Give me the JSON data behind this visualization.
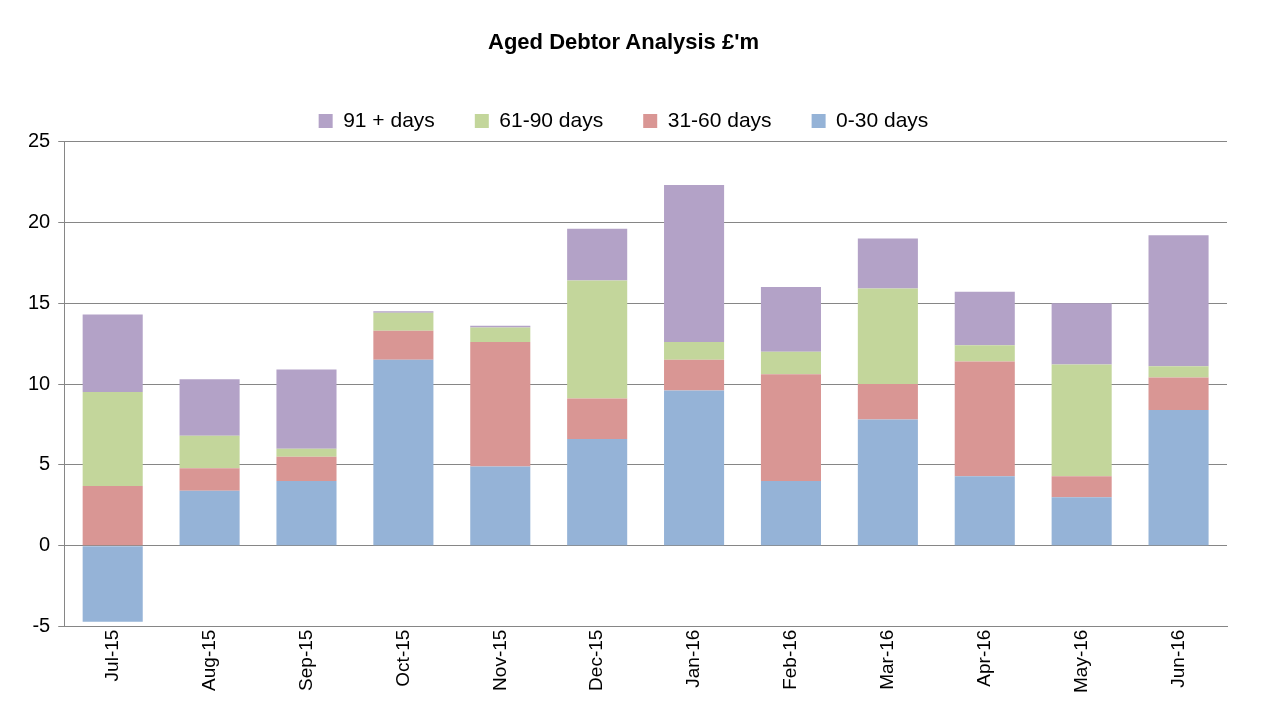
{
  "chart_data": {
    "type": "bar",
    "title": "Aged Debtor Analysis £'m",
    "stacked": true,
    "legend": "top",
    "grid": "y",
    "categories": [
      "Jul-15",
      "Aug-15",
      "Sep-15",
      "Oct-15",
      "Nov-15",
      "Dec-15",
      "Jan-16",
      "Feb-16",
      "Mar-16",
      "Apr-16",
      "May-16",
      "Jun-16"
    ],
    "ylim": [
      -5,
      25
    ],
    "yticks": [
      -5,
      0,
      5,
      10,
      15,
      20,
      25
    ],
    "series": [
      {
        "name": "0-30 days",
        "color": "#95b3d7",
        "values": [
          -4.7,
          3.4,
          4.0,
          11.5,
          4.9,
          6.6,
          9.6,
          4.0,
          7.8,
          4.3,
          3.0,
          8.4
        ]
      },
      {
        "name": "31-60 days",
        "color": "#d99694",
        "values": [
          3.7,
          1.4,
          1.5,
          1.8,
          7.7,
          2.5,
          1.9,
          6.6,
          2.2,
          7.1,
          1.3,
          2.0
        ]
      },
      {
        "name": "61-90 days",
        "color": "#c3d69b",
        "values": [
          5.8,
          2.0,
          0.5,
          1.1,
          0.9,
          7.3,
          1.1,
          1.4,
          5.9,
          1.0,
          6.9,
          0.7
        ]
      },
      {
        "name": "91 + days",
        "color": "#b3a2c7",
        "values": [
          4.8,
          3.5,
          4.9,
          0.1,
          0.1,
          3.2,
          9.7,
          4.0,
          3.1,
          3.3,
          3.8,
          8.1
        ]
      }
    ]
  }
}
